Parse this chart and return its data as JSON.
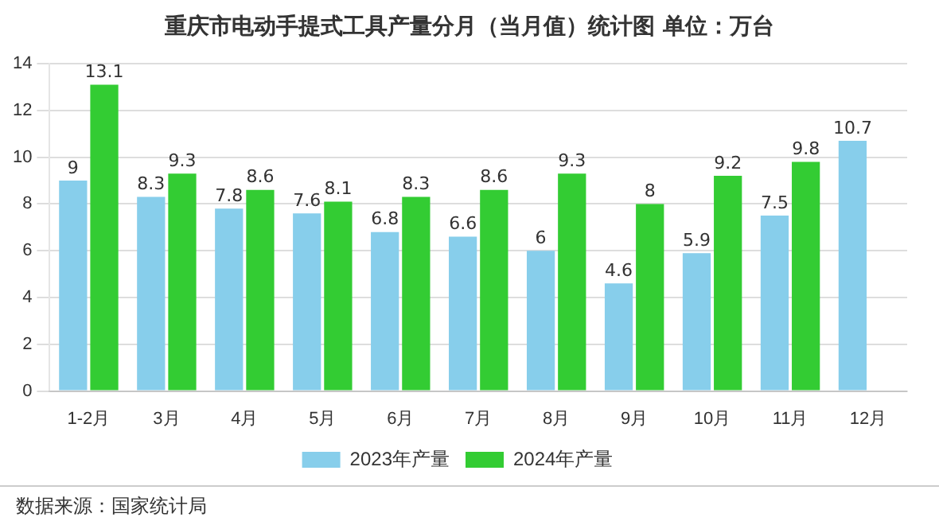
{
  "chart_data": {
    "type": "bar",
    "title": "重庆市电动手提式工具产量分月（当月值）统计图 单位：万台",
    "categories": [
      "1-2月",
      "3月",
      "4月",
      "5月",
      "6月",
      "7月",
      "8月",
      "9月",
      "10月",
      "11月",
      "12月"
    ],
    "series": [
      {
        "name": "2023年产量",
        "color": "#87ceeb",
        "values": [
          9,
          8.3,
          7.8,
          7.6,
          6.8,
          6.6,
          6,
          4.6,
          5.9,
          7.5,
          10.7
        ]
      },
      {
        "name": "2024年产量",
        "color": "#33cc33",
        "values": [
          13.1,
          9.3,
          8.6,
          8.1,
          8.3,
          8.6,
          9.3,
          8,
          9.2,
          9.8,
          null
        ]
      }
    ],
    "ylim": [
      0,
      14
    ],
    "yticks": [
      0,
      2,
      4,
      6,
      8,
      10,
      12,
      14
    ],
    "grid": "y",
    "legend": "bottom",
    "data_labels": true,
    "annotations": [
      "数据来源：国家统计局"
    ]
  }
}
